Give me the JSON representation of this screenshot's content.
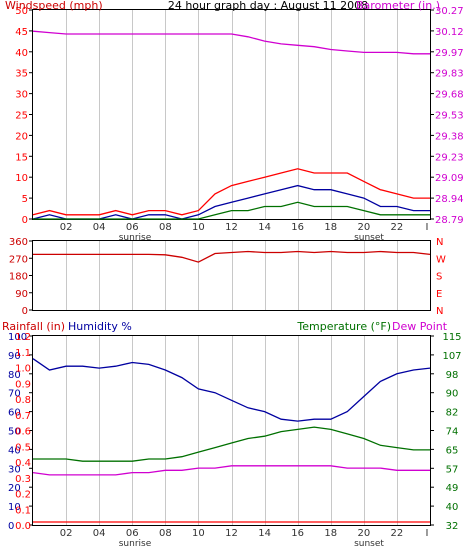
{
  "header": {
    "left_label": "Windspeed (mph)",
    "title": "24 hour graph day : August 11 2008",
    "right_label": "Barometer (in.)"
  },
  "panel3_labels": {
    "rainfall": "Rainfall (in)",
    "humidity": "Humidity %",
    "temperature": "Temperature (°F)",
    "dewpoint": "Dew Point"
  },
  "x_axis": {
    "ticks": [
      "02",
      "04",
      "06",
      "08",
      "10",
      "12",
      "14",
      "16",
      "18",
      "20",
      "22",
      "I"
    ],
    "sunrise_label": "sunrise",
    "sunset_label": "sunset"
  },
  "colors": {
    "red": "#ff0000",
    "darkred": "#cc0000",
    "blue": "#0000a0",
    "green": "#007000",
    "magenta": "#d000d0",
    "grid": "#c8c8c8"
  },
  "chart_data": [
    {
      "type": "line",
      "title": "24 hour graph day : August 11 2008",
      "ylabel": "Windspeed (mph)",
      "y2label": "Barometer (in.)",
      "x_hours": [
        0,
        1,
        2,
        3,
        4,
        5,
        6,
        7,
        8,
        9,
        10,
        11,
        12,
        13,
        14,
        15,
        16,
        17,
        18,
        19,
        20,
        21,
        22,
        23,
        24
      ],
      "ylim": [
        0,
        50
      ],
      "y_ticks": [
        "0",
        "5",
        "10",
        "15",
        "20",
        "25",
        "30",
        "35",
        "40",
        "45",
        "50"
      ],
      "y2lim": [
        28.79,
        30.27
      ],
      "y2_ticks": [
        "28.79",
        "28.94",
        "29.09",
        "29.23",
        "29.38",
        "29.53",
        "29.68",
        "29.83",
        "29.97",
        "30.12",
        "30.27"
      ],
      "series": [
        {
          "role": "wind_gust",
          "color": "#ff0000",
          "values": [
            1,
            2,
            1,
            1,
            1,
            2,
            1,
            2,
            2,
            1,
            2,
            6,
            8,
            9,
            10,
            11,
            12,
            11,
            11,
            11,
            9,
            7,
            6,
            5,
            5
          ]
        },
        {
          "role": "wind_avg",
          "color": "#0000a0",
          "values": [
            0,
            1,
            0,
            0,
            0,
            1,
            0,
            1,
            1,
            0,
            1,
            3,
            4,
            5,
            6,
            7,
            8,
            7,
            7,
            6,
            5,
            3,
            3,
            2,
            2
          ]
        },
        {
          "role": "wind_low",
          "color": "#007000",
          "values": [
            0,
            0,
            0,
            0,
            0,
            0,
            0,
            0,
            0,
            0,
            0,
            1,
            2,
            2,
            3,
            3,
            4,
            3,
            3,
            3,
            2,
            1,
            1,
            1,
            1
          ]
        },
        {
          "role": "barometer",
          "color": "#d000d0",
          "values": [
            30.12,
            30.11,
            30.1,
            30.1,
            30.1,
            30.1,
            30.1,
            30.1,
            30.1,
            30.1,
            30.1,
            30.1,
            30.1,
            30.08,
            30.05,
            30.03,
            30.02,
            30.01,
            29.99,
            29.98,
            29.97,
            29.97,
            29.97,
            29.96,
            29.96
          ]
        }
      ]
    },
    {
      "type": "line",
      "title": "",
      "ylabel": "",
      "x_hours": [
        0,
        1,
        2,
        3,
        4,
        5,
        6,
        7,
        8,
        9,
        10,
        11,
        12,
        13,
        14,
        15,
        16,
        17,
        18,
        19,
        20,
        21,
        22,
        23,
        24
      ],
      "ylim": [
        0,
        360
      ],
      "y_ticks": [
        "0",
        "90",
        "180",
        "270",
        "360"
      ],
      "right_labels": [
        "N",
        "W",
        "S",
        "E",
        "N"
      ],
      "series": [
        {
          "role": "wind_direction",
          "color": "#cc0000",
          "values": [
            290,
            290,
            290,
            290,
            290,
            290,
            290,
            290,
            288,
            275,
            250,
            295,
            300,
            305,
            300,
            300,
            305,
            300,
            305,
            300,
            300,
            305,
            300,
            300,
            290
          ]
        }
      ]
    },
    {
      "type": "line",
      "title": "",
      "ylabel": "Rainfall (in)",
      "y2label": "Temperature (°F)",
      "x_hours": [
        0,
        1,
        2,
        3,
        4,
        5,
        6,
        7,
        8,
        9,
        10,
        11,
        12,
        13,
        14,
        15,
        16,
        17,
        18,
        19,
        20,
        21,
        22,
        23,
        24
      ],
      "humidity_ticks": [
        "0",
        "10",
        "20",
        "30",
        "40",
        "50",
        "60",
        "70",
        "80",
        "90",
        "100"
      ],
      "rain_ticks": [
        "0.0",
        "0.1",
        "0.2",
        "0.3",
        "0.4",
        "0.5",
        "0.6",
        "0.7",
        "0.8",
        "0.9",
        "1.0",
        "1.1",
        "1.2"
      ],
      "temp_ticks": [
        "32",
        "40",
        "49",
        "57",
        "65",
        "74",
        "82",
        "90",
        "98",
        "107",
        "115"
      ],
      "humidity_lim": [
        0,
        100
      ],
      "temp_lim": [
        32,
        115
      ],
      "series": [
        {
          "role": "humidity",
          "color": "#0000a0",
          "values": [
            88,
            82,
            84,
            84,
            83,
            84,
            86,
            85,
            82,
            78,
            72,
            70,
            66,
            62,
            60,
            56,
            55,
            56,
            56,
            60,
            68,
            76,
            80,
            82,
            83
          ]
        },
        {
          "role": "temperature",
          "color": "#007000",
          "values": [
            61,
            61,
            61,
            60,
            60,
            60,
            60,
            61,
            61,
            62,
            64,
            66,
            68,
            70,
            71,
            73,
            74,
            75,
            74,
            72,
            70,
            67,
            66,
            65,
            65
          ]
        },
        {
          "role": "dew_point",
          "color": "#d000d0",
          "values": [
            55,
            54,
            54,
            54,
            54,
            54,
            55,
            55,
            56,
            56,
            57,
            57,
            58,
            58,
            58,
            58,
            58,
            58,
            58,
            57,
            57,
            57,
            56,
            56,
            56
          ]
        },
        {
          "role": "rainfall",
          "color": "#ff0000",
          "values": [
            0,
            0,
            0,
            0,
            0,
            0,
            0,
            0,
            0,
            0,
            0,
            0,
            0,
            0,
            0,
            0,
            0,
            0,
            0,
            0,
            0,
            0,
            0,
            0,
            0
          ]
        }
      ]
    }
  ]
}
